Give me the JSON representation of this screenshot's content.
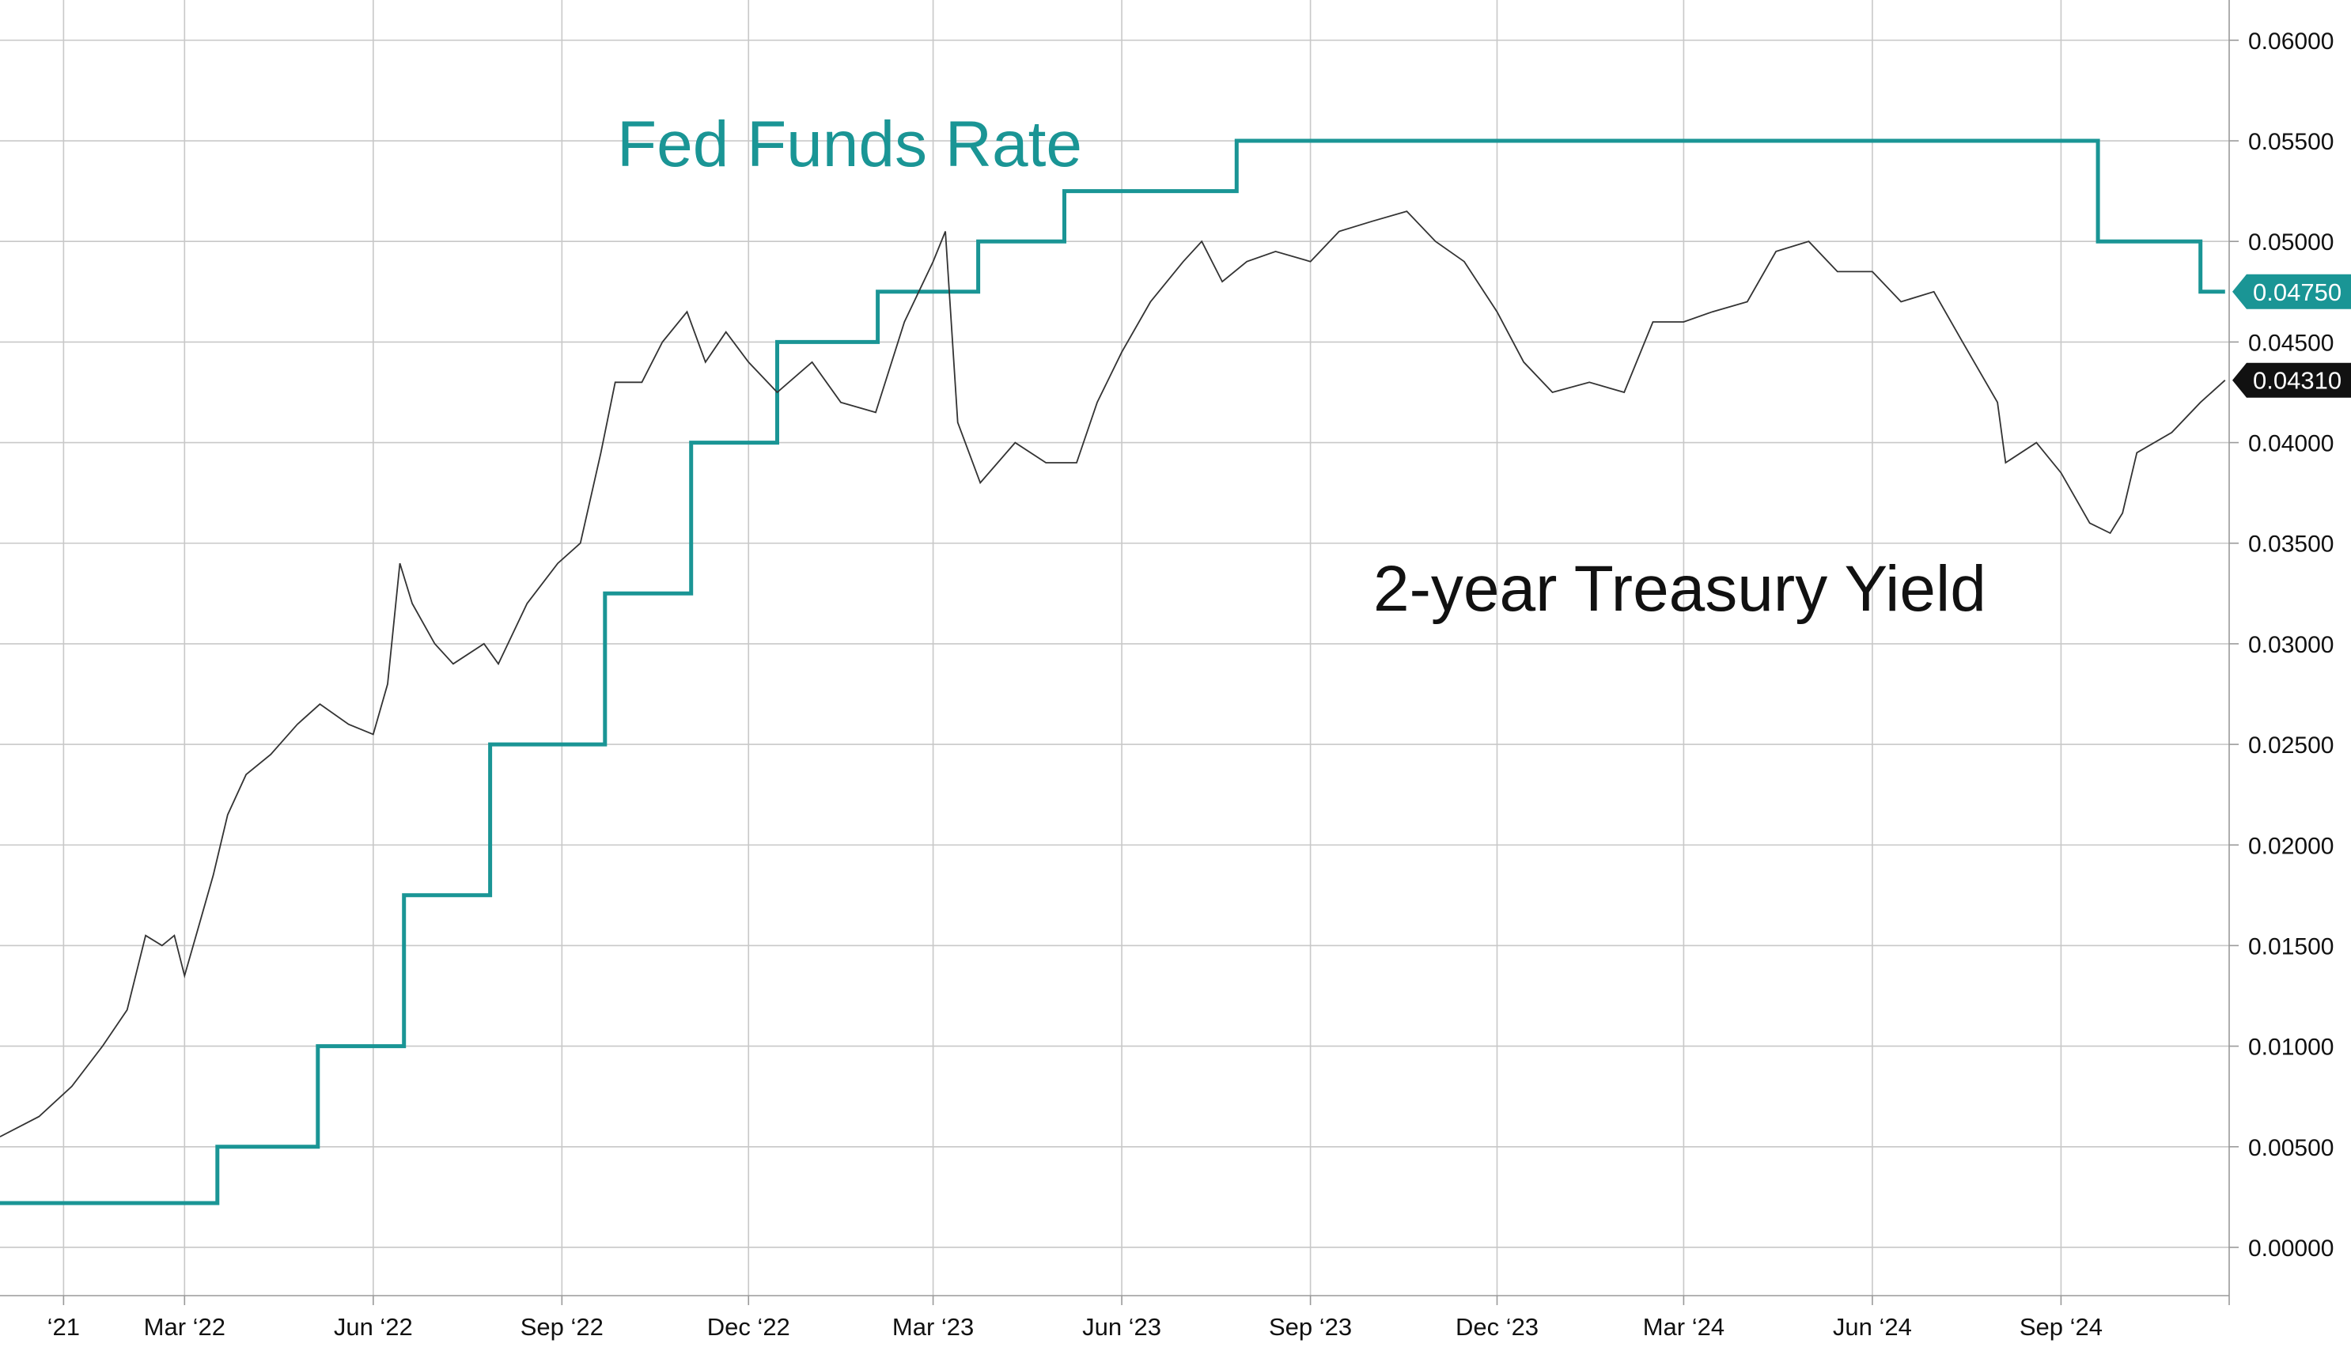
{
  "chart_data": {
    "type": "line",
    "title": "",
    "xlabel": "",
    "ylabel": "",
    "x_domain": [
      "2021-12-01",
      "2024-11-22"
    ],
    "ylim": [
      -0.0024,
      0.062
    ],
    "grid": true,
    "y_axis_position": "right",
    "y_ticks": [
      "0.06000",
      "0.05500",
      "0.05000",
      "0.04500",
      "0.04000",
      "0.03500",
      "0.03000",
      "0.02500",
      "0.02000",
      "0.01500",
      "0.01000",
      "0.00500",
      "0.00000"
    ],
    "x_ticks": [
      {
        "date": "2022-01-01",
        "label": "‘21"
      },
      {
        "date": "2022-03-01",
        "label": "Mar ‘22"
      },
      {
        "date": "2022-06-01",
        "label": "Jun ‘22"
      },
      {
        "date": "2022-09-01",
        "label": "Sep ‘22"
      },
      {
        "date": "2022-12-01",
        "label": "Dec ‘22"
      },
      {
        "date": "2023-03-01",
        "label": "Mar ‘23"
      },
      {
        "date": "2023-06-01",
        "label": "Jun ‘23"
      },
      {
        "date": "2023-09-01",
        "label": "Sep ‘23"
      },
      {
        "date": "2023-12-01",
        "label": "Dec ‘23"
      },
      {
        "date": "2024-03-01",
        "label": "Mar ‘24"
      },
      {
        "date": "2024-06-01",
        "label": "Jun ‘24"
      },
      {
        "date": "2024-09-01",
        "label": "Sep ‘24"
      }
    ],
    "series": [
      {
        "name": "Fed Funds Rate",
        "color": "#1a9595",
        "shape": "step",
        "points": [
          [
            "2021-12-01",
            0.0022
          ],
          [
            "2022-03-17",
            0.0022
          ],
          [
            "2022-03-17",
            0.005
          ],
          [
            "2022-05-05",
            0.005
          ],
          [
            "2022-05-05",
            0.01
          ],
          [
            "2022-06-16",
            0.01
          ],
          [
            "2022-06-16",
            0.0175
          ],
          [
            "2022-07-28",
            0.0175
          ],
          [
            "2022-07-28",
            0.025
          ],
          [
            "2022-09-22",
            0.025
          ],
          [
            "2022-09-22",
            0.0325
          ],
          [
            "2022-11-03",
            0.0325
          ],
          [
            "2022-11-03",
            0.04
          ],
          [
            "2022-12-15",
            0.04
          ],
          [
            "2022-12-15",
            0.045
          ],
          [
            "2023-02-02",
            0.045
          ],
          [
            "2023-02-02",
            0.0475
          ],
          [
            "2023-03-23",
            0.0475
          ],
          [
            "2023-03-23",
            0.05
          ],
          [
            "2023-05-04",
            0.05
          ],
          [
            "2023-05-04",
            0.0525
          ],
          [
            "2023-07-27",
            0.0525
          ],
          [
            "2023-07-27",
            0.055
          ],
          [
            "2024-09-19",
            0.055
          ],
          [
            "2024-09-19",
            0.05
          ],
          [
            "2024-11-08",
            0.05
          ],
          [
            "2024-11-08",
            0.0475
          ],
          [
            "2024-11-20",
            0.0475
          ]
        ],
        "last_value_label": "0.04750"
      },
      {
        "name": "2-year Treasury Yield",
        "color": "#333333",
        "shape": "line",
        "points": [
          [
            "2021-12-01",
            0.0055
          ],
          [
            "2021-12-20",
            0.0065
          ],
          [
            "2022-01-05",
            0.008
          ],
          [
            "2022-01-20",
            0.01
          ],
          [
            "2022-02-01",
            0.0118
          ],
          [
            "2022-02-10",
            0.0155
          ],
          [
            "2022-02-18",
            0.015
          ],
          [
            "2022-02-24",
            0.0155
          ],
          [
            "2022-03-01",
            0.0135
          ],
          [
            "2022-03-08",
            0.016
          ],
          [
            "2022-03-15",
            0.0185
          ],
          [
            "2022-03-22",
            0.0215
          ],
          [
            "2022-03-31",
            0.0235
          ],
          [
            "2022-04-12",
            0.0245
          ],
          [
            "2022-04-25",
            0.026
          ],
          [
            "2022-05-06",
            0.027
          ],
          [
            "2022-05-20",
            0.026
          ],
          [
            "2022-06-01",
            0.0255
          ],
          [
            "2022-06-08",
            0.028
          ],
          [
            "2022-06-14",
            0.034
          ],
          [
            "2022-06-20",
            0.032
          ],
          [
            "2022-07-01",
            0.03
          ],
          [
            "2022-07-10",
            0.029
          ],
          [
            "2022-07-25",
            0.03
          ],
          [
            "2022-08-01",
            0.029
          ],
          [
            "2022-08-15",
            0.032
          ],
          [
            "2022-08-30",
            0.034
          ],
          [
            "2022-09-10",
            0.035
          ],
          [
            "2022-09-20",
            0.0395
          ],
          [
            "2022-09-27",
            0.043
          ],
          [
            "2022-10-10",
            0.043
          ],
          [
            "2022-10-20",
            0.045
          ],
          [
            "2022-11-01",
            0.0465
          ],
          [
            "2022-11-10",
            0.044
          ],
          [
            "2022-11-20",
            0.0455
          ],
          [
            "2022-12-01",
            0.044
          ],
          [
            "2022-12-15",
            0.0425
          ],
          [
            "2023-01-01",
            0.044
          ],
          [
            "2023-01-15",
            0.042
          ],
          [
            "2023-02-01",
            0.0415
          ],
          [
            "2023-02-15",
            0.046
          ],
          [
            "2023-03-01",
            0.049
          ],
          [
            "2023-03-07",
            0.0505
          ],
          [
            "2023-03-13",
            0.041
          ],
          [
            "2023-03-24",
            0.038
          ],
          [
            "2023-04-10",
            0.04
          ],
          [
            "2023-04-25",
            0.039
          ],
          [
            "2023-05-10",
            0.039
          ],
          [
            "2023-05-20",
            0.042
          ],
          [
            "2023-06-01",
            0.0445
          ],
          [
            "2023-06-15",
            0.047
          ],
          [
            "2023-07-01",
            0.049
          ],
          [
            "2023-07-10",
            0.05
          ],
          [
            "2023-07-20",
            0.048
          ],
          [
            "2023-08-01",
            0.049
          ],
          [
            "2023-08-15",
            0.0495
          ],
          [
            "2023-09-01",
            0.049
          ],
          [
            "2023-09-15",
            0.0505
          ],
          [
            "2023-10-01",
            0.051
          ],
          [
            "2023-10-18",
            0.0515
          ],
          [
            "2023-11-01",
            0.05
          ],
          [
            "2023-11-15",
            0.049
          ],
          [
            "2023-12-01",
            0.0465
          ],
          [
            "2023-12-14",
            0.044
          ],
          [
            "2023-12-28",
            0.0425
          ],
          [
            "2024-01-15",
            0.043
          ],
          [
            "2024-02-01",
            0.0425
          ],
          [
            "2024-02-15",
            0.046
          ],
          [
            "2024-03-01",
            0.046
          ],
          [
            "2024-03-15",
            0.0465
          ],
          [
            "2024-04-01",
            0.047
          ],
          [
            "2024-04-15",
            0.0495
          ],
          [
            "2024-05-01",
            0.05
          ],
          [
            "2024-05-15",
            0.0485
          ],
          [
            "2024-06-01",
            0.0485
          ],
          [
            "2024-06-15",
            0.047
          ],
          [
            "2024-07-01",
            0.0475
          ],
          [
            "2024-07-15",
            0.045
          ],
          [
            "2024-08-01",
            0.042
          ],
          [
            "2024-08-05",
            0.039
          ],
          [
            "2024-08-20",
            0.04
          ],
          [
            "2024-09-01",
            0.0385
          ],
          [
            "2024-09-15",
            0.036
          ],
          [
            "2024-09-25",
            0.0355
          ],
          [
            "2024-10-01",
            0.0365
          ],
          [
            "2024-10-08",
            0.0395
          ],
          [
            "2024-10-25",
            0.0405
          ],
          [
            "2024-11-08",
            0.042
          ],
          [
            "2024-11-20",
            0.0431
          ]
        ],
        "last_value_label": "0.04310"
      }
    ],
    "annotations": [
      {
        "text": "Fed Funds Rate",
        "series": 0
      },
      {
        "text": "2-year Treasury Yield",
        "series": 1
      }
    ]
  }
}
